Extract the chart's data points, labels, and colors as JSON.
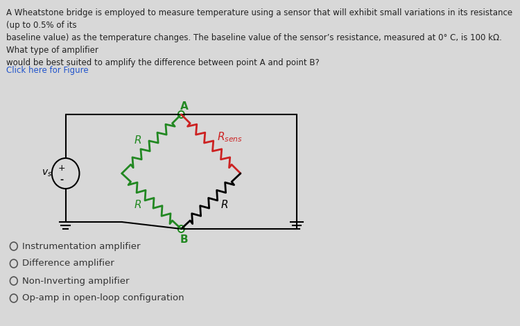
{
  "bg_color": "#d8d8d8",
  "title_text": "A Wheatstone bridge is employed to measure temperature using a sensor that will exhibit small variations in its resistance (up to 0.5% of its\nbaseline value) as the temperature changes. The baseline value of the sensor’s resistance, measured at 0° C, is 100 kΩ. What type of amplifier\nwould be best suited to amplify the difference between point A and point B?",
  "link_text": "Click here for Figure",
  "options": [
    "Instrumentation amplifier",
    "Difference amplifier",
    "Non-Inverting amplifier",
    "Op-amp in open-loop configuration"
  ],
  "correct_option": 0,
  "text_color": "#222222",
  "link_color": "#2255cc",
  "option_text_color": "#333333"
}
